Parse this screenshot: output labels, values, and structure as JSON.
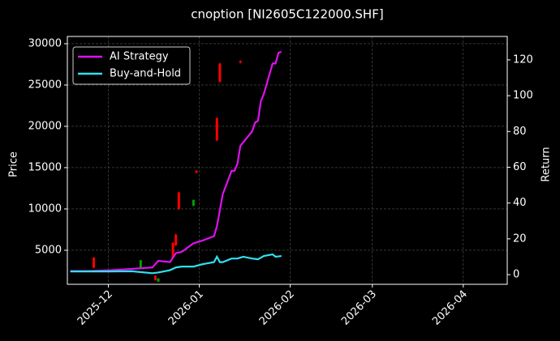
{
  "chart_data": {
    "type": "candlestick",
    "title": "cnoption [NI2605C122000.SHF]",
    "ylabel": "Price",
    "y2label": "Return",
    "xlim": [
      "2025-11-17",
      "2026-04-16"
    ],
    "xticks": [
      {
        "value": "2025-12-01",
        "label": "2025-12"
      },
      {
        "value": "2026-01-01",
        "label": "2026-01"
      },
      {
        "value": "2026-02-01",
        "label": "2026-02"
      },
      {
        "value": "2026-03-01",
        "label": "2026-03"
      },
      {
        "value": "2026-04-01",
        "label": "2026-04"
      }
    ],
    "ylim": [
      880,
      30880
    ],
    "yticks": [
      5000,
      10000,
      15000,
      20000,
      25000,
      30000
    ],
    "y2lim": [
      -5.4,
      133.1
    ],
    "y2ticks": [
      0,
      20,
      40,
      60,
      80,
      100,
      120
    ],
    "grid": true,
    "legend": "upper left",
    "up_color": "#00a000",
    "down_color": "#ff0000",
    "x": [
      "2025-11-26",
      "2025-12-12",
      "2025-12-17",
      "2025-12-18",
      "2025-12-23",
      "2025-12-24",
      "2025-12-25",
      "2025-12-30",
      "2025-12-31",
      "2026-01-07",
      "2026-01-08",
      "2026-01-15"
    ],
    "open": [
      4100,
      2900,
      1900,
      1200,
      5900,
      6900,
      12000,
      10400,
      14600,
      21000,
      27600,
      27900
    ],
    "high": [
      4200,
      3800,
      2000,
      1600,
      6000,
      7000,
      12100,
      11100,
      14700,
      21100,
      27700,
      28000
    ],
    "low": [
      2800,
      2800,
      1300,
      1150,
      4000,
      5500,
      9900,
      10300,
      14300,
      18200,
      25300,
      27600
    ],
    "close": [
      2900,
      3800,
      1400,
      1600,
      4100,
      5600,
      10000,
      11100,
      14400,
      18300,
      25400,
      27700
    ],
    "series": [
      {
        "name": "AI Strategy",
        "color": "#e010f0",
        "axis": "y2",
        "x": [
          "2025-11-18",
          "2025-11-25",
          "2025-12-02",
          "2025-12-09",
          "2025-12-16",
          "2025-12-18",
          "2025-12-22",
          "2025-12-24",
          "2025-12-26",
          "2025-12-30",
          "2026-01-02",
          "2026-01-06",
          "2026-01-07",
          "2026-01-08",
          "2026-01-09",
          "2026-01-12",
          "2026-01-13",
          "2026-01-14",
          "2026-01-15",
          "2026-01-16",
          "2026-01-19",
          "2026-01-20",
          "2026-01-21",
          "2026-01-22",
          "2026-01-23",
          "2026-01-26",
          "2026-01-27",
          "2026-01-28",
          "2026-01-29"
        ],
        "values": [
          2,
          2,
          2.5,
          3.2,
          4,
          7.7,
          7,
          12,
          12.7,
          17.5,
          19,
          21.5,
          27,
          36,
          45,
          58,
          58,
          62,
          72,
          74,
          80,
          85,
          86,
          97,
          101,
          118,
          118,
          124,
          124.5
        ]
      },
      {
        "name": "Buy-and-Hold",
        "color": "#30e0f0",
        "axis": "y2",
        "x": [
          "2025-11-18",
          "2025-11-25",
          "2025-12-02",
          "2025-12-09",
          "2025-12-16",
          "2025-12-18",
          "2025-12-22",
          "2025-12-24",
          "2025-12-26",
          "2025-12-30",
          "2026-01-02",
          "2026-01-06",
          "2026-01-07",
          "2026-01-08",
          "2026-01-09",
          "2026-01-12",
          "2026-01-13",
          "2026-01-14",
          "2026-01-15",
          "2026-01-16",
          "2026-01-19",
          "2026-01-20",
          "2026-01-21",
          "2026-01-22",
          "2026-01-23",
          "2026-01-26",
          "2026-01-27",
          "2026-01-28",
          "2026-01-29"
        ],
        "values": [
          1.8,
          1.8,
          1.8,
          1.9,
          0.8,
          1.2,
          2.5,
          4,
          4.5,
          4.5,
          5.8,
          7,
          10,
          7,
          7,
          9,
          9,
          9,
          9.5,
          10,
          9,
          8.8,
          8.6,
          9.5,
          10.4,
          11.3,
          10,
          10.2,
          10.4
        ]
      }
    ]
  }
}
